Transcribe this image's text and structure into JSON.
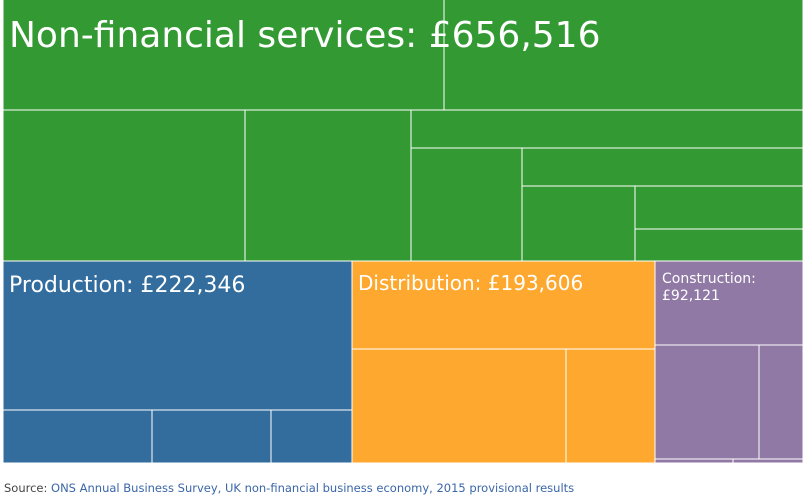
{
  "chart_data": {
    "type": "treemap",
    "sectors": [
      {
        "name": "Non-financial services",
        "value": 656516,
        "label": "Non-financial services: £656,516",
        "color": "#339933"
      },
      {
        "name": "Production",
        "value": 222346,
        "label": "Production: £222,346",
        "color": "#336d9e"
      },
      {
        "name": "Distribution",
        "value": 193606,
        "label": "Distribution: £193,606",
        "color": "#fea82f"
      },
      {
        "name": "Construction",
        "value": 92121,
        "label_lines": [
          "Construction:",
          "£92,121"
        ],
        "color": "#9079a5"
      }
    ]
  },
  "source": {
    "prefix": "Source: ",
    "text": "ONS Annual Business Survey, UK non-financial business economy, 2015 provisional results",
    "link_color": "#3a66a8"
  }
}
